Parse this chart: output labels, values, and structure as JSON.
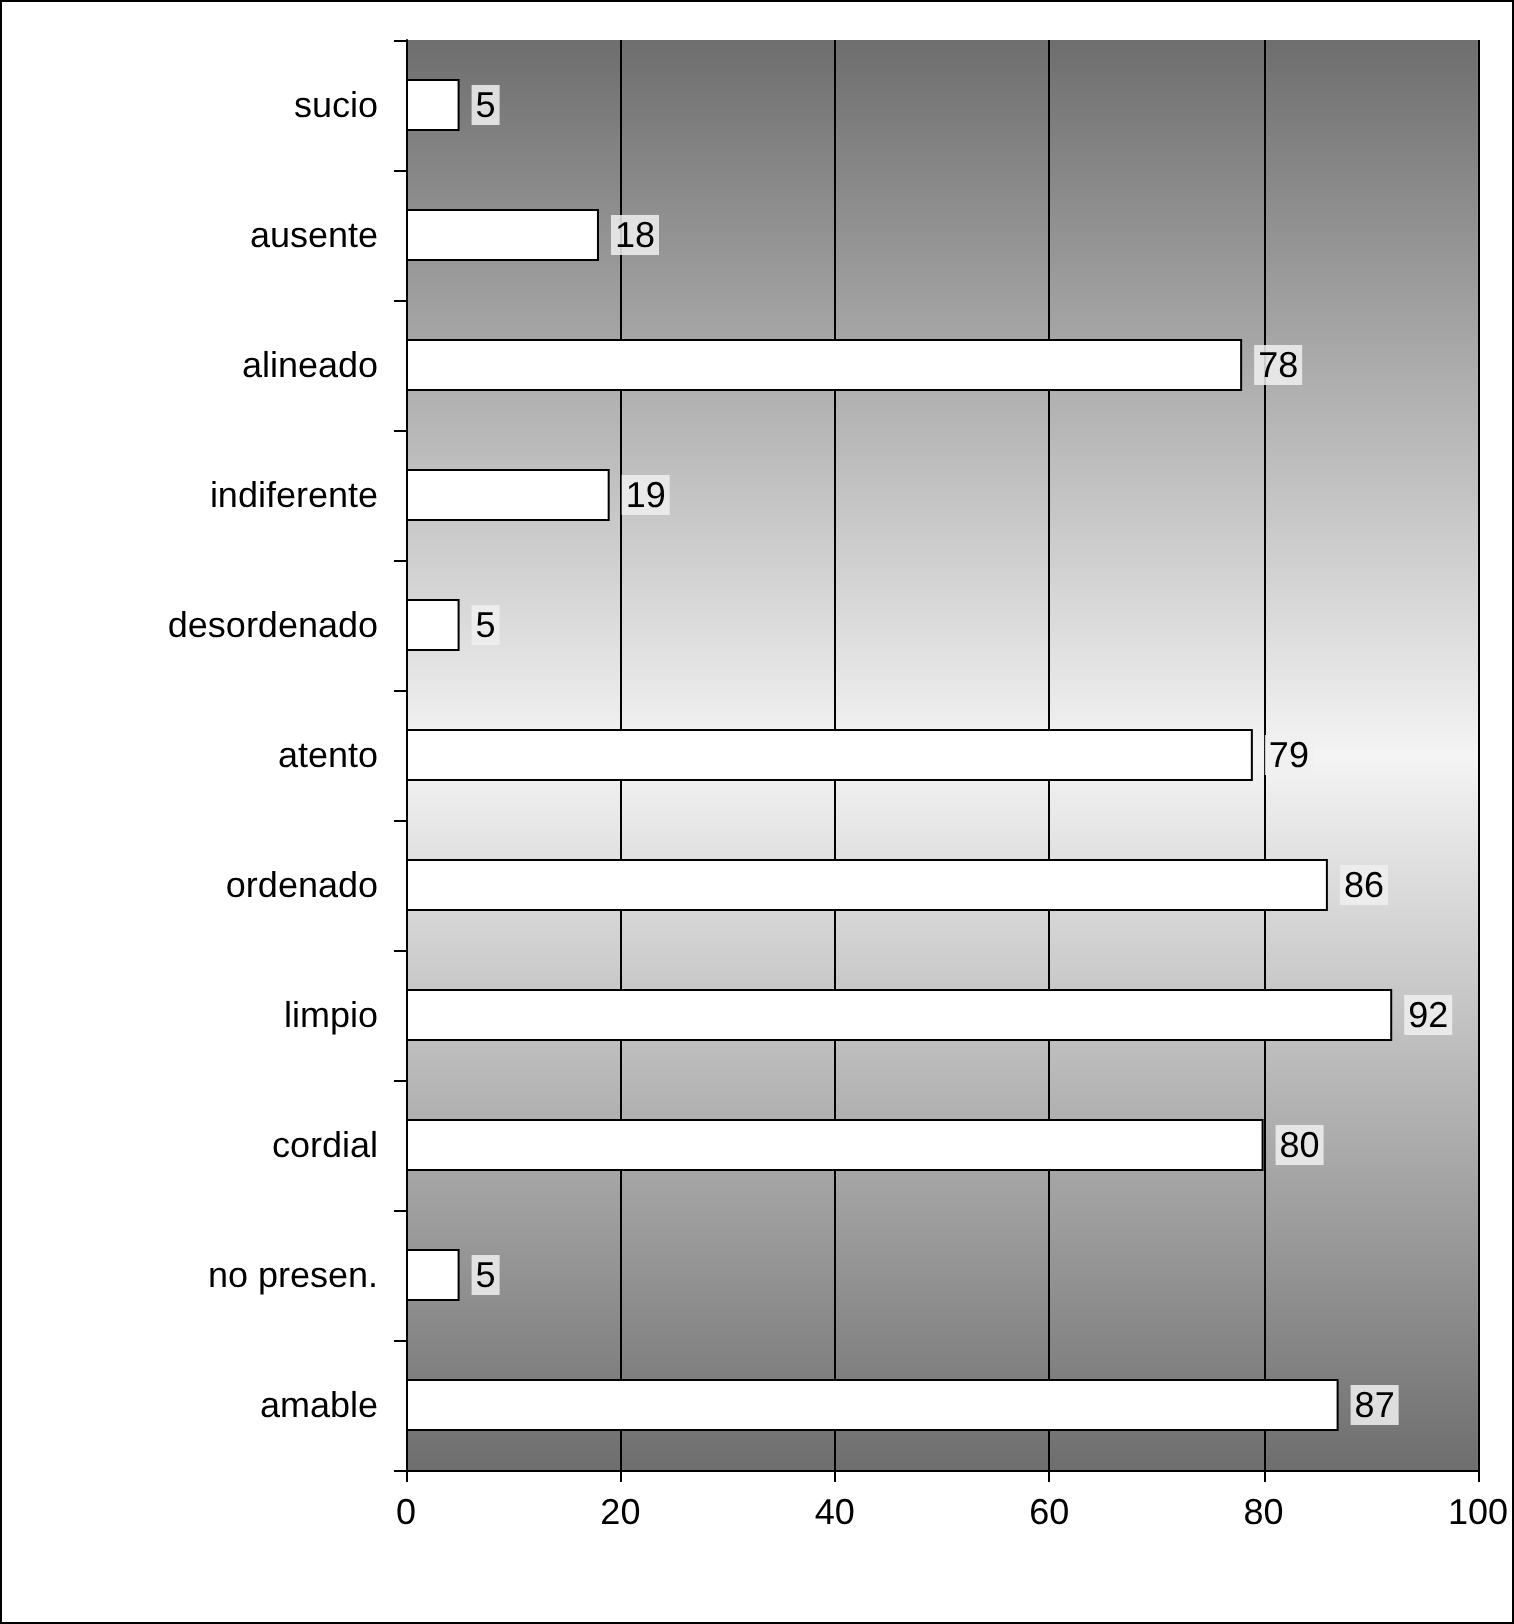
{
  "chart_data": {
    "type": "bar",
    "orientation": "horizontal",
    "categories": [
      "sucio",
      "ausente",
      "alineado",
      "indiferente",
      "desordenado",
      "atento",
      "ordenado",
      "limpio",
      "cordial",
      "no presen.",
      "amable"
    ],
    "values": [
      5,
      18,
      78,
      19,
      5,
      79,
      86,
      92,
      80,
      5,
      87
    ],
    "color": "#ffffff",
    "xlim": [
      0,
      100
    ],
    "xticks": [
      0,
      20,
      40,
      60,
      80,
      100
    ],
    "grid": "x",
    "data_labels": true
  }
}
